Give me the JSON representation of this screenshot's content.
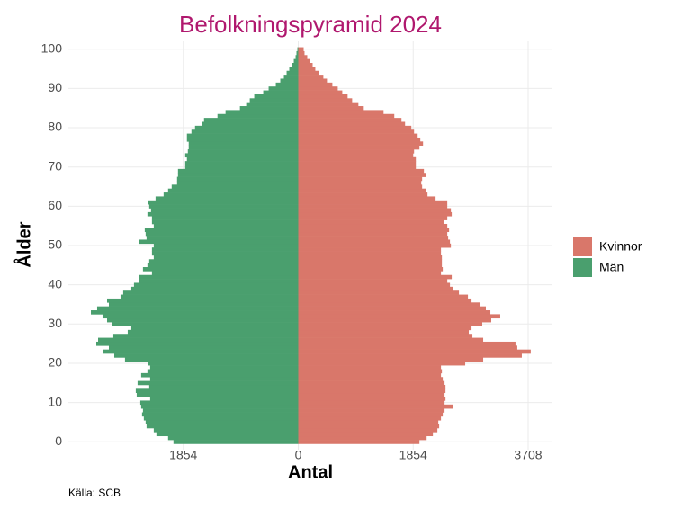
{
  "chart_data": {
    "type": "pyramid",
    "title": "Befolkningspyramid 2024",
    "x_label": "Antal",
    "y_label": "Ålder",
    "caption": "Källa: SCB",
    "categories": [
      0,
      1,
      2,
      3,
      4,
      5,
      6,
      7,
      8,
      9,
      10,
      11,
      12,
      13,
      14,
      15,
      16,
      17,
      18,
      19,
      20,
      21,
      22,
      23,
      24,
      25,
      26,
      27,
      28,
      29,
      30,
      31,
      32,
      33,
      34,
      35,
      36,
      37,
      38,
      39,
      40,
      41,
      42,
      43,
      44,
      45,
      46,
      47,
      48,
      49,
      50,
      51,
      52,
      53,
      54,
      55,
      56,
      57,
      58,
      59,
      60,
      61,
      62,
      63,
      64,
      65,
      66,
      67,
      68,
      69,
      70,
      71,
      72,
      73,
      74,
      75,
      76,
      77,
      78,
      79,
      80,
      81,
      82,
      83,
      84,
      85,
      86,
      87,
      88,
      89,
      90,
      91,
      92,
      93,
      94,
      95,
      96,
      97,
      98,
      99,
      100
    ],
    "series": [
      {
        "name": "Kvinnor",
        "color": "#d9776a",
        "values": [
          1955,
          2071,
          2172,
          2244,
          2273,
          2259,
          2302,
          2331,
          2360,
          2491,
          2360,
          2375,
          2360,
          2375,
          2375,
          2360,
          2331,
          2302,
          2317,
          2302,
          2693,
          2983,
          3606,
          3750,
          3533,
          3504,
          2983,
          2809,
          2751,
          2795,
          2968,
          3113,
          3258,
          3099,
          3026,
          2939,
          2795,
          2737,
          2592,
          2491,
          2447,
          2404,
          2476,
          2302,
          2331,
          2317,
          2317,
          2317,
          2302,
          2302,
          2462,
          2447,
          2418,
          2404,
          2433,
          2404,
          2346,
          2404,
          2476,
          2462,
          2404,
          2404,
          2215,
          2085,
          2056,
          1998,
          1984,
          1998,
          2056,
          2027,
          1897,
          1897,
          1897,
          1853,
          1868,
          1955,
          2013,
          1969,
          1926,
          1868,
          1824,
          1723,
          1665,
          1549,
          1376,
          1057,
          970,
          869,
          796,
          710,
          637,
          550,
          463,
          405,
          333,
          275,
          232,
          188,
          145,
          101,
          87
        ]
      },
      {
        "name": "Män",
        "color": "#4a9f6e",
        "values": [
          -2013,
          -2100,
          -2288,
          -2331,
          -2447,
          -2462,
          -2491,
          -2520,
          -2505,
          -2534,
          -2548,
          -2389,
          -2606,
          -2621,
          -2404,
          -2592,
          -2389,
          -2534,
          -2433,
          -2389,
          -2418,
          -2795,
          -2968,
          -3142,
          -3055,
          -3258,
          -3229,
          -2983,
          -2751,
          -2693,
          -2997,
          -3084,
          -3157,
          -3345,
          -3244,
          -3055,
          -3084,
          -2867,
          -2824,
          -2693,
          -2650,
          -2563,
          -2563,
          -2360,
          -2505,
          -2433,
          -2404,
          -2331,
          -2360,
          -2360,
          -2331,
          -2563,
          -2447,
          -2462,
          -2476,
          -2331,
          -2360,
          -2360,
          -2433,
          -2375,
          -2404,
          -2418,
          -2302,
          -2172,
          -2100,
          -2042,
          -1955,
          -1955,
          -1940,
          -1940,
          -1824,
          -1824,
          -1796,
          -1824,
          -1781,
          -1767,
          -1767,
          -1796,
          -1796,
          -1723,
          -1665,
          -1549,
          -1520,
          -1303,
          -1173,
          -941,
          -840,
          -782,
          -710,
          -565,
          -478,
          -362,
          -290,
          -232,
          -188,
          -145,
          -101,
          -72,
          -43,
          -29,
          -14
        ]
      }
    ],
    "xlim": [
      -3708,
      4100
    ],
    "xticks": [
      {
        "value": -1854,
        "label": "1854"
      },
      0,
      1854,
      3708
    ],
    "ylim": [
      -2,
      102
    ],
    "yticks": [
      0,
      10,
      20,
      30,
      40,
      50,
      60,
      70,
      80,
      90,
      100
    ],
    "grid": true
  }
}
